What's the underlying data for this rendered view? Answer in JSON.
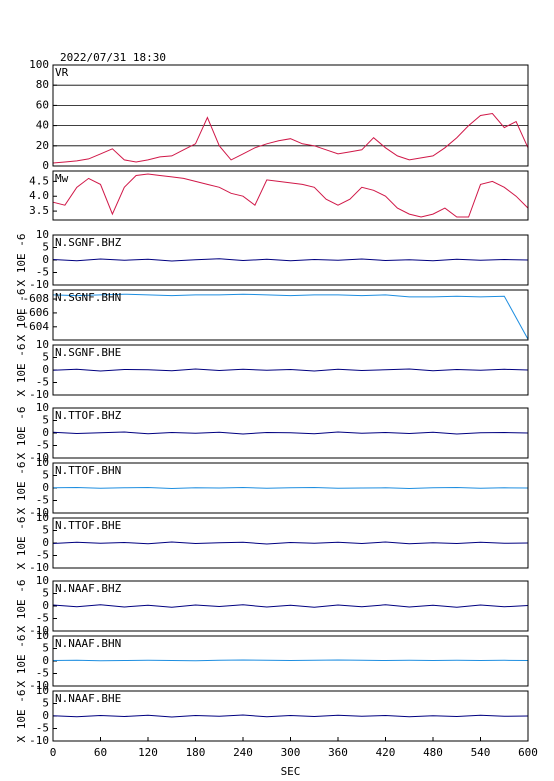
{
  "chart_data": [
    {
      "type": "line",
      "title": "2022/07/31 18:30",
      "label": "VR",
      "color": "#d01848",
      "grid": true,
      "x": [
        0,
        15,
        30,
        45,
        60,
        75,
        90,
        105,
        120,
        135,
        150,
        165,
        180,
        195,
        210,
        225,
        240,
        255,
        270,
        285,
        300,
        315,
        330,
        345,
        360,
        375,
        390,
        405,
        420,
        435,
        450,
        465,
        480,
        495,
        510,
        525,
        540,
        555,
        570,
        585,
        600
      ],
      "values": [
        3,
        4,
        5,
        7,
        12,
        17,
        6,
        4,
        6,
        9,
        10,
        16,
        22,
        48,
        20,
        6,
        12,
        18,
        22,
        25,
        27,
        22,
        20,
        16,
        12,
        14,
        16,
        28,
        18,
        10,
        6,
        8,
        10,
        18,
        28,
        40,
        50,
        52,
        38,
        44,
        18
      ],
      "xlim": [
        0,
        600
      ],
      "ylim": [
        0,
        100
      ],
      "yticks": [
        0,
        20,
        40,
        60,
        80,
        100
      ]
    },
    {
      "type": "line",
      "label": "Mw",
      "color": "#d01848",
      "x": [
        0,
        15,
        30,
        45,
        60,
        75,
        90,
        105,
        120,
        135,
        150,
        165,
        180,
        195,
        210,
        225,
        240,
        255,
        270,
        285,
        300,
        315,
        330,
        345,
        360,
        375,
        390,
        405,
        420,
        435,
        450,
        465,
        480,
        495,
        510,
        525,
        540,
        555,
        570,
        585,
        600
      ],
      "values": [
        3.8,
        3.7,
        4.3,
        4.6,
        4.4,
        3.4,
        4.3,
        4.7,
        4.75,
        4.7,
        4.65,
        4.6,
        4.5,
        4.4,
        4.3,
        4.1,
        4.0,
        3.7,
        4.55,
        4.5,
        4.45,
        4.4,
        4.3,
        3.9,
        3.7,
        3.9,
        4.3,
        4.2,
        4.0,
        3.6,
        3.4,
        3.3,
        3.4,
        3.6,
        3.3,
        3.3,
        4.4,
        4.5,
        4.3,
        4.0,
        3.6
      ],
      "xlim": [
        0,
        600
      ],
      "ylim": [
        3.2,
        4.85
      ],
      "yticks": [
        3.5,
        {
          "value": 4,
          "label": "4.0"
        },
        4.5
      ]
    },
    {
      "type": "line",
      "label": "N.SGNF.BHZ",
      "ylabel": "X 10E -6",
      "color": "#000080",
      "x": [
        0,
        30,
        60,
        90,
        120,
        150,
        180,
        210,
        240,
        270,
        300,
        330,
        360,
        390,
        420,
        450,
        480,
        510,
        540,
        570,
        600
      ],
      "values": [
        0.2,
        -0.3,
        0.4,
        -0.1,
        0.3,
        -0.4,
        0.1,
        0.5,
        -0.2,
        0.3,
        -0.3,
        0.2,
        -0.1,
        0.4,
        -0.2,
        0.1,
        -0.3,
        0.3,
        -0.1,
        0.2,
        0
      ],
      "xlim": [
        0,
        600
      ],
      "ylim": [
        -10,
        10
      ],
      "yticks": [
        -10,
        -5,
        0,
        5,
        10
      ]
    },
    {
      "type": "line",
      "label": "N.SGNF.BHN",
      "ylabel": "X 10E -6",
      "color": "#1e8ee0",
      "x": [
        0,
        30,
        60,
        90,
        120,
        150,
        180,
        210,
        240,
        270,
        300,
        330,
        360,
        390,
        420,
        450,
        480,
        510,
        540,
        570,
        600
      ],
      "values": [
        -608.6,
        -608.5,
        -608.6,
        -608.7,
        -608.6,
        -608.5,
        -608.6,
        -608.6,
        -608.7,
        -608.6,
        -608.5,
        -608.6,
        -608.6,
        -608.5,
        -608.6,
        -608.3,
        -608.3,
        -608.4,
        -608.3,
        -608.4,
        -602.2
      ],
      "xlim": [
        0,
        600
      ],
      "ylim": [
        -602.1,
        -609.3
      ],
      "yticks": [
        -608,
        -606,
        -604
      ]
    },
    {
      "type": "line",
      "label": "N.SGNF.BHE",
      "ylabel": "X 10E -6",
      "color": "#000080",
      "x": [
        0,
        30,
        60,
        90,
        120,
        150,
        180,
        210,
        240,
        270,
        300,
        330,
        360,
        390,
        420,
        450,
        480,
        510,
        540,
        570,
        600
      ],
      "values": [
        -0.1,
        0.3,
        -0.4,
        0.2,
        0.1,
        -0.3,
        0.4,
        -0.2,
        0.3,
        -0.1,
        0.2,
        -0.4,
        0.3,
        -0.2,
        0.1,
        0.4,
        -0.3,
        0.2,
        -0.1,
        0.3,
        0
      ],
      "xlim": [
        0,
        600
      ],
      "ylim": [
        -10,
        10
      ],
      "yticks": [
        -10,
        -5,
        0,
        5,
        10
      ]
    },
    {
      "type": "line",
      "label": "N.TTOF.BHZ",
      "ylabel": "X 10E -6",
      "color": "#000080",
      "x": [
        0,
        30,
        60,
        90,
        120,
        150,
        180,
        210,
        240,
        270,
        300,
        330,
        360,
        390,
        420,
        450,
        480,
        510,
        540,
        570,
        600
      ],
      "values": [
        0.3,
        -0.2,
        0.1,
        0.4,
        -0.3,
        0.2,
        -0.1,
        0.3,
        -0.4,
        0.2,
        0.1,
        -0.3,
        0.4,
        -0.1,
        0.2,
        -0.2,
        0.3,
        -0.4,
        0.1,
        0.2,
        0
      ],
      "xlim": [
        0,
        600
      ],
      "ylim": [
        -10,
        10
      ],
      "yticks": [
        -10,
        -5,
        0,
        5,
        10
      ]
    },
    {
      "type": "line",
      "label": "N.TTOF.BHN",
      "ylabel": "X 10E -6",
      "color": "#1e8ee0",
      "x": [
        0,
        30,
        60,
        90,
        120,
        150,
        180,
        210,
        240,
        270,
        300,
        330,
        360,
        390,
        420,
        450,
        480,
        510,
        540,
        570,
        600
      ],
      "values": [
        0.1,
        0.2,
        -0.1,
        0.1,
        0.2,
        -0.2,
        0.1,
        0,
        0.2,
        -0.1,
        0.1,
        0.2,
        -0.1,
        0,
        0.1,
        -0.2,
        0.1,
        0.2,
        -0.1,
        0.1,
        0
      ],
      "xlim": [
        0,
        600
      ],
      "ylim": [
        -10,
        10
      ],
      "yticks": [
        -10,
        -5,
        0,
        5,
        10
      ]
    },
    {
      "type": "line",
      "label": "N.TTOF.BHE",
      "ylabel": "X 10E -6",
      "color": "#000080",
      "x": [
        0,
        30,
        60,
        90,
        120,
        150,
        180,
        210,
        240,
        270,
        300,
        330,
        360,
        390,
        420,
        450,
        480,
        510,
        540,
        570,
        600
      ],
      "values": [
        -0.2,
        0.3,
        -0.1,
        0.2,
        -0.3,
        0.4,
        -0.2,
        0.1,
        0.3,
        -0.4,
        0.2,
        -0.1,
        0.3,
        -0.2,
        0.4,
        -0.3,
        0.1,
        -0.2,
        0.3,
        -0.1,
        0
      ],
      "xlim": [
        0,
        600
      ],
      "ylim": [
        -10,
        10
      ],
      "yticks": [
        -10,
        -5,
        0,
        5,
        10
      ]
    },
    {
      "type": "line",
      "label": "N.NAAF.BHZ",
      "ylabel": "X 10E -6",
      "color": "#000080",
      "x": [
        0,
        30,
        60,
        90,
        120,
        150,
        180,
        210,
        240,
        270,
        300,
        330,
        360,
        390,
        420,
        450,
        480,
        510,
        540,
        570,
        600
      ],
      "values": [
        0.4,
        -0.3,
        0.5,
        -0.4,
        0.3,
        -0.5,
        0.4,
        -0.2,
        0.5,
        -0.4,
        0.3,
        -0.5,
        0.4,
        -0.3,
        0.5,
        -0.4,
        0.3,
        -0.5,
        0.4,
        -0.3,
        0.2
      ],
      "xlim": [
        0,
        600
      ],
      "ylim": [
        -10,
        10
      ],
      "yticks": [
        -10,
        -5,
        0,
        5,
        10
      ]
    },
    {
      "type": "line",
      "label": "N.NAAF.BHN",
      "ylabel": "X 10E -6",
      "color": "#1e8ee0",
      "x": [
        0,
        30,
        60,
        90,
        120,
        150,
        180,
        210,
        240,
        270,
        300,
        330,
        360,
        390,
        420,
        450,
        480,
        510,
        540,
        570,
        600
      ],
      "values": [
        0.2,
        0.3,
        0.1,
        0.2,
        0.3,
        0.2,
        0.1,
        0.3,
        0.4,
        0.3,
        0.2,
        0.3,
        0.4,
        0.3,
        0.2,
        0.3,
        0.2,
        0.3,
        0.2,
        0.3,
        0.2
      ],
      "xlim": [
        0,
        600
      ],
      "ylim": [
        -10,
        10
      ],
      "yticks": [
        -10,
        -5,
        0,
        5,
        10
      ]
    },
    {
      "type": "line",
      "label": "N.NAAF.BHE",
      "ylabel": "X 10E -6",
      "xlabel": "SEC",
      "color": "#000080",
      "x": [
        0,
        30,
        60,
        90,
        120,
        150,
        180,
        210,
        240,
        270,
        300,
        330,
        360,
        390,
        420,
        450,
        480,
        510,
        540,
        570,
        600
      ],
      "values": [
        0.1,
        -0.3,
        0.2,
        -0.2,
        0.3,
        -0.4,
        0.2,
        -0.1,
        0.4,
        -0.3,
        0.2,
        -0.2,
        0.3,
        -0.1,
        0.2,
        -0.3,
        0.1,
        -0.2,
        0.3,
        -0.1,
        0
      ],
      "xlim": [
        0,
        600
      ],
      "ylim": [
        -10,
        10
      ],
      "yticks": [
        -10,
        -5,
        0,
        5,
        10
      ],
      "xticks": [
        0,
        60,
        120,
        180,
        240,
        300,
        360,
        420,
        480,
        540,
        600
      ]
    }
  ]
}
